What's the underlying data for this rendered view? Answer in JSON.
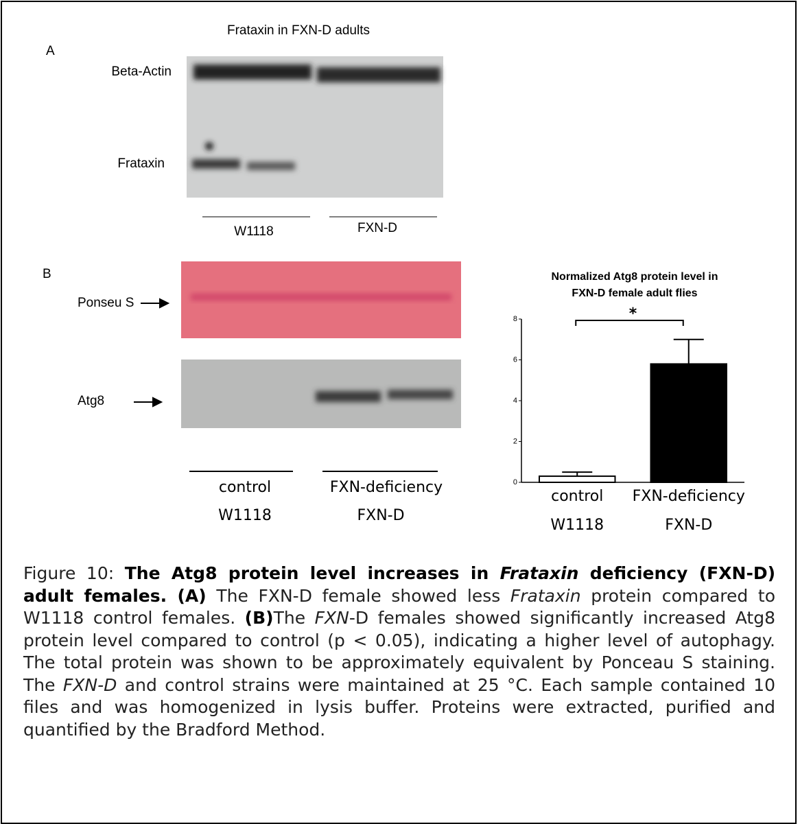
{
  "figure": {
    "panel_a": {
      "letter": "A",
      "title": "Frataxin in FXN-D adults",
      "rows": [
        "Beta-Actin",
        "Frataxin"
      ],
      "lanes": [
        "W1118",
        "FXN-D"
      ]
    },
    "panel_b": {
      "letter": "B",
      "rows": [
        "Ponseu S",
        "Atg8"
      ],
      "lanes": [
        "control",
        "FXN-deficiency"
      ],
      "sublanes": [
        "W1118",
        "FXN-D"
      ]
    }
  },
  "chart_data": {
    "type": "bar",
    "title": [
      "Normalized Atg8 protein level in",
      "FXN-D female adult flies"
    ],
    "categories": [
      "control",
      "FXN-deficiency"
    ],
    "subcategories": [
      "W1118",
      "FXN-D"
    ],
    "series": [
      {
        "name": "Atg8",
        "colors": [
          "#ffffff",
          "#000000"
        ],
        "values": [
          0.3,
          5.8
        ],
        "errors": [
          0.2,
          1.2
        ]
      }
    ],
    "ylim": [
      0,
      8
    ],
    "yticks": [
      0,
      2,
      4,
      6,
      8
    ],
    "significance": "*"
  },
  "caption": {
    "parts": [
      "Figure 10: ",
      "The Atg8 protein level increases in ",
      "Frataxin",
      " deficiency (FXN-D) adult females.",
      " (A)",
      " The FXN-D female showed less ",
      "Frataxin",
      " protein compared to W1118 control females. ",
      "(B)",
      "The ",
      "FXN",
      "-D females showed significantly increased Atg8 protein level compared to control (p < 0.05), indicating a higher level of autophagy. The total protein was shown to be approximately equivalent by Ponceau S staining. The ",
      "FXN-D",
      " and control strains were maintained at 25 °C. Each sample contained 10 files and was homogenized in lysis buffer. Proteins were extracted, purified and quantified by the Bradford Method."
    ]
  }
}
